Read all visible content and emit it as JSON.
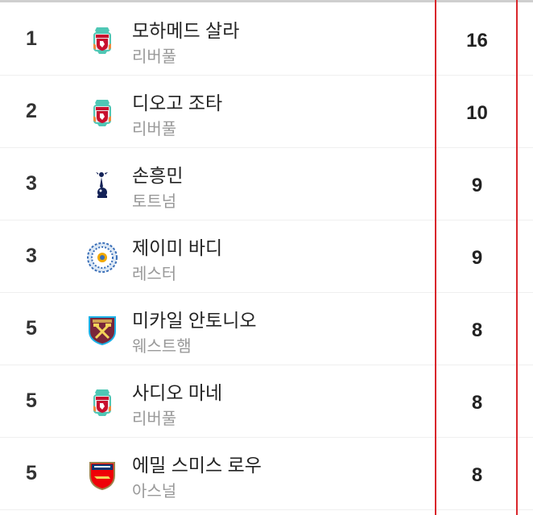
{
  "colors": {
    "accent_line": "#d9262b",
    "rank_text": "#333333",
    "team_text": "#999999"
  },
  "players": [
    {
      "rank": "1",
      "name": "모하메드 살라",
      "team": "리버풀",
      "crest": "liverpool-crest-icon",
      "goals": "16"
    },
    {
      "rank": "2",
      "name": "디오고 조타",
      "team": "리버풀",
      "crest": "liverpool-crest-icon",
      "goals": "10"
    },
    {
      "rank": "3",
      "name": "손흥민",
      "team": "토트넘",
      "crest": "tottenham-crest-icon",
      "goals": "9"
    },
    {
      "rank": "3",
      "name": "제이미 바디",
      "team": "레스터",
      "crest": "leicester-crest-icon",
      "goals": "9"
    },
    {
      "rank": "5",
      "name": "미카일 안토니오",
      "team": "웨스트햄",
      "crest": "westham-crest-icon",
      "goals": "8"
    },
    {
      "rank": "5",
      "name": "사디오 마네",
      "team": "리버풀",
      "crest": "liverpool-crest-icon",
      "goals": "8"
    },
    {
      "rank": "5",
      "name": "에밀 스미스 로우",
      "team": "아스널",
      "crest": "arsenal-crest-icon",
      "goals": "8"
    }
  ]
}
